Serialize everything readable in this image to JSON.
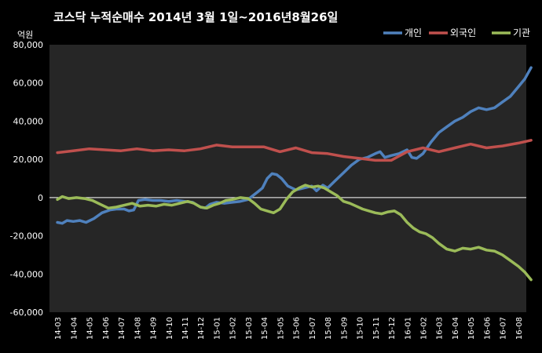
{
  "chart_data": {
    "type": "line",
    "title": "코스닥  누적순매수 2014년 3월 1일~2016년8월26일",
    "unit_label": "억원",
    "xlabel": "",
    "ylabel": "",
    "ylim": [
      -60000,
      80000
    ],
    "y_ticks": [
      -60000,
      -40000,
      -20000,
      0,
      20000,
      40000,
      60000,
      80000
    ],
    "y_tick_labels": [
      "-60,000",
      "-40,000",
      "-20,000",
      "0",
      "20,000",
      "40,000",
      "60,000",
      "80,000"
    ],
    "categories": [
      "14-03",
      "14-04",
      "14-05",
      "14-06",
      "14-07",
      "14-08",
      "14-09",
      "14-10",
      "14-11",
      "14-12",
      "15-01",
      "15-02",
      "15-03",
      "15-04",
      "15-05",
      "15-06",
      "15-07",
      "15-08",
      "15-09",
      "15-10",
      "15-11",
      "15-12",
      "16-01",
      "16-02",
      "16-03",
      "16-04",
      "16-05",
      "16-06",
      "16-07",
      "16-08"
    ],
    "grid": false,
    "legend_position": "top-right",
    "plot_background": "#262626",
    "series": [
      {
        "name": "개인",
        "color": "#4f81bd",
        "x": [
          0,
          0.3,
          0.6,
          1,
          1.4,
          1.8,
          2.3,
          2.8,
          3.3,
          3.7,
          4.2,
          4.5,
          4.8,
          5.1,
          5.5,
          6,
          6.5,
          7,
          7.5,
          8,
          8.5,
          9,
          9.3,
          9.6,
          10,
          10.5,
          11,
          11.5,
          12,
          12.3,
          12.6,
          12.9,
          13.2,
          13.5,
          13.8,
          14.1,
          14.5,
          15,
          15.5,
          16,
          16.3,
          16.7,
          17,
          17.5,
          18,
          18.5,
          19,
          19.5,
          20,
          20.3,
          20.6,
          21,
          21.5,
          22,
          22.3,
          22.6,
          23,
          23.5,
          24,
          24.5,
          25,
          25.5,
          26,
          26.5,
          27,
          27.5,
          28,
          28.5,
          29,
          29.4,
          29.8
        ],
        "values": [
          -13000,
          -13500,
          -12000,
          -12500,
          -12000,
          -13000,
          -11000,
          -8000,
          -6500,
          -6000,
          -6000,
          -7000,
          -6500,
          -1500,
          -1000,
          -1500,
          -1500,
          -2000,
          -1500,
          -2000,
          -2500,
          -5000,
          -5500,
          -3500,
          -2500,
          -3000,
          -2500,
          -2000,
          -1000,
          1000,
          3000,
          5000,
          10000,
          12500,
          12000,
          10000,
          6000,
          4000,
          5000,
          6000,
          3500,
          6500,
          5000,
          9000,
          13000,
          17000,
          20000,
          21000,
          23000,
          24000,
          21000,
          22000,
          23000,
          25000,
          21000,
          20500,
          23000,
          29000,
          34000,
          37000,
          40000,
          42000,
          45000,
          47000,
          46000,
          47000,
          50000,
          53000,
          58000,
          62000,
          68000
        ]
      },
      {
        "name": "외국인",
        "color": "#c0504d",
        "x": [
          0,
          1,
          2,
          3,
          4,
          5,
          6,
          7,
          8,
          9,
          10,
          11,
          12,
          13,
          14,
          15,
          16,
          17,
          18,
          19,
          20,
          21,
          22,
          23,
          24,
          25,
          26,
          27,
          28,
          29,
          29.8
        ],
        "values": [
          23500,
          24500,
          25500,
          25000,
          24500,
          25500,
          24500,
          25000,
          24500,
          25500,
          27500,
          26500,
          26500,
          26500,
          24000,
          26000,
          23500,
          23000,
          21500,
          20500,
          19500,
          19500,
          24000,
          26000,
          24000,
          26000,
          28000,
          26000,
          27000,
          28500,
          30000
        ]
      },
      {
        "name": "기관",
        "color": "#9bbb59",
        "x": [
          0,
          0.3,
          0.7,
          1.2,
          1.7,
          2.2,
          2.7,
          3.2,
          3.7,
          4.2,
          4.7,
          5.2,
          5.7,
          6.2,
          6.7,
          7.2,
          7.7,
          8.2,
          8.6,
          9,
          9.4,
          9.8,
          10.2,
          10.6,
          11,
          11.5,
          12,
          12.4,
          12.8,
          13.2,
          13.6,
          14,
          14.4,
          14.8,
          15.2,
          15.6,
          16,
          16.4,
          16.8,
          17.2,
          17.6,
          18,
          18.4,
          18.8,
          19.2,
          19.6,
          20,
          20.4,
          20.8,
          21.2,
          21.6,
          22,
          22.4,
          22.8,
          23.2,
          23.6,
          24,
          24.5,
          25,
          25.5,
          26,
          26.5,
          27,
          27.5,
          28,
          28.5,
          29,
          29.4,
          29.8
        ],
        "values": [
          -1000,
          500,
          -500,
          0,
          -500,
          -1500,
          -3500,
          -5500,
          -5000,
          -4000,
          -3000,
          -4500,
          -4000,
          -4500,
          -3500,
          -4000,
          -3000,
          -2000,
          -3000,
          -5000,
          -5500,
          -4000,
          -3000,
          -1500,
          -1000,
          0,
          -500,
          -3000,
          -6000,
          -7000,
          -8000,
          -6000,
          -1000,
          3000,
          5000,
          6500,
          5500,
          6000,
          5000,
          3000,
          1000,
          -2000,
          -3000,
          -4500,
          -6000,
          -7000,
          -8000,
          -8500,
          -7500,
          -7000,
          -9000,
          -13000,
          -16000,
          -18000,
          -19000,
          -21000,
          -24000,
          -27000,
          -28000,
          -26500,
          -27000,
          -26000,
          -27500,
          -28000,
          -30000,
          -33000,
          -36000,
          -39000,
          -43000
        ]
      }
    ]
  }
}
